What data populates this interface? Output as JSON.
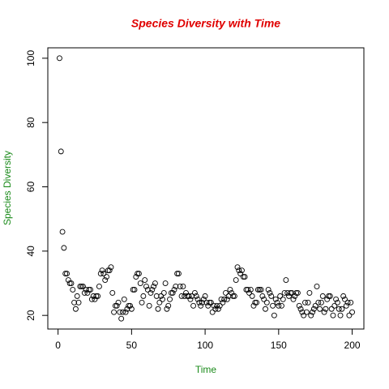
{
  "chart_data": {
    "type": "scatter",
    "title": "Species Diversity with Time",
    "xlabel": "Time",
    "ylabel": "Species Diversity",
    "x": [
      1,
      2,
      3,
      4,
      5,
      6,
      7,
      8,
      9,
      10,
      11,
      12,
      13,
      14,
      15,
      16,
      17,
      18,
      19,
      20,
      21,
      22,
      23,
      24,
      25,
      26,
      27,
      28,
      29,
      30,
      31,
      32,
      33,
      34,
      35,
      36,
      37,
      38,
      39,
      40,
      41,
      42,
      43,
      44,
      45,
      46,
      47,
      48,
      49,
      50,
      51,
      52,
      53,
      54,
      55,
      56,
      57,
      58,
      59,
      60,
      61,
      62,
      63,
      64,
      65,
      66,
      67,
      68,
      69,
      70,
      71,
      72,
      73,
      74,
      75,
      76,
      77,
      78,
      79,
      80,
      81,
      82,
      83,
      84,
      85,
      86,
      87,
      88,
      89,
      90,
      91,
      92,
      93,
      94,
      95,
      96,
      97,
      98,
      99,
      100,
      101,
      102,
      103,
      104,
      105,
      106,
      107,
      108,
      109,
      110,
      111,
      112,
      113,
      114,
      115,
      116,
      117,
      118,
      119,
      120,
      121,
      122,
      123,
      124,
      125,
      126,
      127,
      128,
      129,
      130,
      131,
      132,
      133,
      134,
      135,
      136,
      137,
      138,
      139,
      140,
      141,
      142,
      143,
      144,
      145,
      146,
      147,
      148,
      149,
      150,
      151,
      152,
      153,
      154,
      155,
      156,
      157,
      158,
      159,
      160,
      161,
      162,
      163,
      164,
      165,
      166,
      167,
      168,
      169,
      170,
      171,
      172,
      173,
      174,
      175,
      176,
      177,
      178,
      179,
      180,
      181,
      182,
      183,
      184,
      185,
      186,
      187,
      188,
      189,
      190,
      191,
      192,
      193,
      194,
      195,
      196,
      197,
      198,
      199,
      200
    ],
    "values": [
      100,
      71,
      46,
      41,
      33,
      33,
      31,
      30,
      30,
      28,
      24,
      22,
      26,
      24,
      29,
      29,
      29,
      27,
      28,
      27,
      28,
      28,
      25,
      26,
      25,
      26,
      26,
      29,
      33,
      34,
      33,
      31,
      32,
      34,
      34,
      35,
      27,
      21,
      23,
      23,
      24,
      21,
      19,
      21,
      25,
      21,
      22,
      23,
      23,
      22,
      28,
      28,
      32,
      33,
      33,
      30,
      24,
      26,
      31,
      29,
      28,
      23,
      27,
      28,
      29,
      30,
      26,
      22,
      24,
      26,
      25,
      27,
      30,
      22,
      23,
      25,
      27,
      27,
      28,
      29,
      33,
      33,
      29,
      26,
      29,
      26,
      27,
      26,
      26,
      25,
      26,
      23,
      27,
      26,
      25,
      24,
      23,
      24,
      25,
      26,
      24,
      23,
      24,
      24,
      21,
      23,
      22,
      23,
      22,
      23,
      25,
      24,
      25,
      27,
      25,
      26,
      28,
      27,
      26,
      26,
      31,
      35,
      34,
      33,
      34,
      32,
      32,
      28,
      28,
      27,
      28,
      26,
      23,
      24,
      24,
      28,
      28,
      28,
      26,
      25,
      22,
      24,
      28,
      27,
      26,
      23,
      20,
      25,
      24,
      23,
      26,
      23,
      25,
      27,
      31,
      27,
      26,
      27,
      27,
      25,
      26,
      27,
      27,
      23,
      22,
      21,
      20,
      24,
      21,
      24,
      27,
      20,
      21,
      22,
      23,
      29,
      24,
      22,
      24,
      26,
      21,
      22,
      25,
      26,
      26,
      22,
      20,
      23,
      25,
      24,
      22,
      20,
      22,
      26,
      25,
      23,
      24,
      20,
      24,
      21
    ],
    "color": "#000000",
    "xlim": [
      -6.96,
      207.96
    ],
    "xticks": [
      0,
      50,
      100,
      150,
      200
    ],
    "ylim": [
      15.76,
      103.24
    ],
    "yticks": [
      20,
      40,
      60,
      80,
      100
    ]
  }
}
